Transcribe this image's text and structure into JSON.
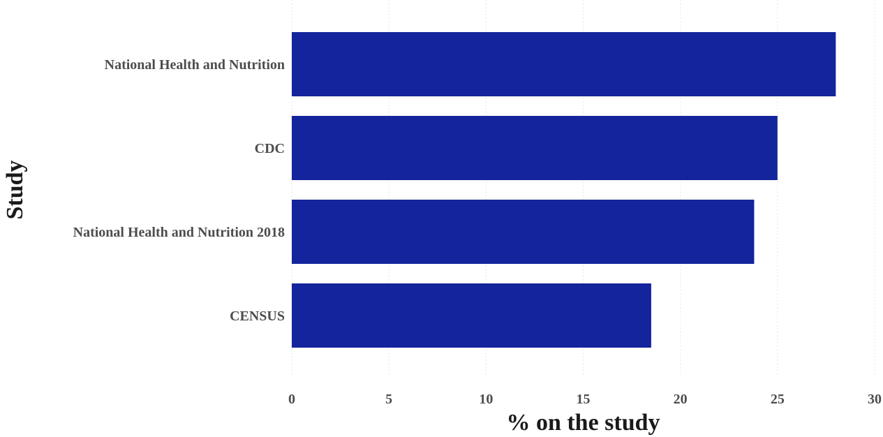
{
  "chart_data": {
    "type": "bar",
    "orientation": "horizontal",
    "title": "",
    "xlabel": "% on the study",
    "ylabel": "Study",
    "categories": [
      "National Health and Nutrition",
      "CDC",
      "National Health and Nutrition 2018",
      "CENSUS"
    ],
    "values": [
      28.0,
      25.0,
      23.8,
      18.5
    ],
    "xlim": [
      0,
      30
    ],
    "xticks": [
      "0",
      "5",
      "10",
      "15",
      "20",
      "25",
      "30"
    ],
    "grid": true,
    "bar_color": "#14249c"
  }
}
